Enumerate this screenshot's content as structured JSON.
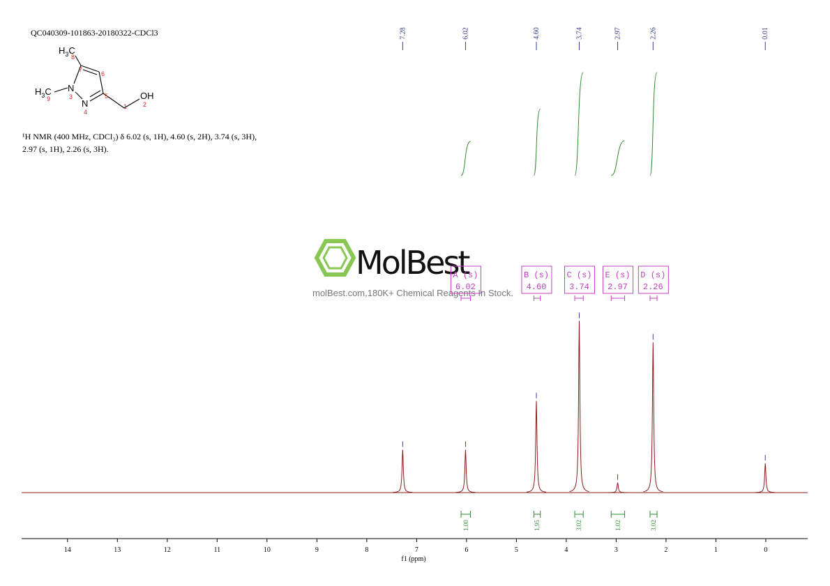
{
  "header": {
    "sample": "QC040309-101863-20180322-CDCl3",
    "description": [
      "¹H NMR (400 MHz, CDCl₃) δ 6.02 (s, 1H), 4.60 (s, 2H), 3.74 (s, 3H),",
      "2.97 (s, 1H), 2.26 (s, 3H)."
    ]
  },
  "structure": {
    "methyl_8": [
      "H",
      "3",
      "C"
    ],
    "methyl_9": [
      "H",
      "3",
      "C"
    ],
    "n3": "N",
    "n4": "N",
    "oh": "OH",
    "numbers": [
      "8",
      "7",
      "6",
      "5",
      "4",
      "3",
      "9",
      "1",
      "2"
    ]
  },
  "watermark": {
    "brand": "MolBest",
    "tagline": "molBest.com,180K+ Chemical Reagents In Stock."
  },
  "chart_data": {
    "type": "nmr",
    "x_label": "f1  (ppm)",
    "xlim": [
      14.92,
      -0.84
    ],
    "xticks": [
      14,
      13,
      12,
      11,
      10,
      9,
      8,
      7,
      6,
      5,
      4,
      3,
      2,
      1,
      0
    ],
    "ylim": [
      0,
      260
    ],
    "color": "#8b1a1a",
    "peak_label_color": "#3b3b8f",
    "integral_color": "#2e8b2e",
    "multiplet_color": "#c23fc2",
    "peaks": {
      "x": [
        7.28,
        6.02,
        4.6,
        3.74,
        2.97,
        2.26,
        0.01
      ],
      "values": [
        60,
        60,
        128,
        240,
        14,
        210,
        41
      ]
    },
    "peak_labels": [
      7.28,
      6.02,
      {
        "value": 4.6,
        "label": "4.60"
      },
      3.74,
      2.97,
      2.26,
      0.01
    ],
    "multiplets": [
      {
        "name": "A (s)",
        "shift": 6.02,
        "range": [
          6.11,
          5.92
        ]
      },
      {
        "name": "B (s)",
        "shift": {
          "value": 4.6,
          "label": "4.60"
        },
        "range": [
          4.65,
          4.52
        ]
      },
      {
        "name": "C (s)",
        "shift": 3.74,
        "range": [
          3.83,
          3.66
        ]
      },
      {
        "name": "E (s)",
        "shift": 2.97,
        "range": [
          3.1,
          2.83
        ]
      },
      {
        "name": "D (s)",
        "shift": 2.26,
        "range": [
          2.32,
          2.18
        ]
      }
    ],
    "integrals": [
      {
        "range": [
          6.11,
          5.92
        ],
        "value": {
          "value": 1,
          "label": "1.00"
        }
      },
      {
        "range": [
          4.65,
          4.52
        ],
        "value": 1.95
      },
      {
        "range": [
          3.83,
          3.66
        ],
        "value": 3.02
      },
      {
        "range": [
          3.1,
          2.83
        ],
        "value": 1.02
      },
      {
        "range": [
          2.32,
          2.18
        ],
        "value": 3.02
      }
    ]
  }
}
